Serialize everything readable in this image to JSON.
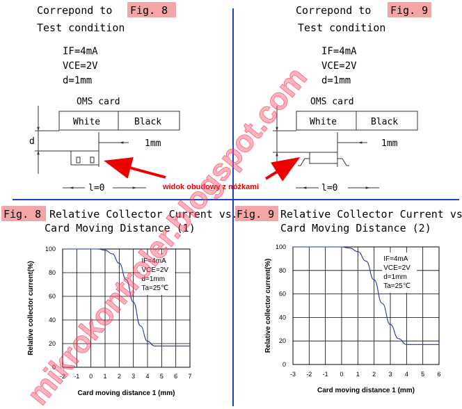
{
  "panels": {
    "left_header": {
      "prefix": "Correpond to",
      "fig": "Fig. 8"
    },
    "right_header": {
      "prefix": "Correpond to",
      "fig": "Fig. 9"
    },
    "test_condition": "Test condition",
    "cond_if": "IF=4mA",
    "cond_vce": "VCE=2V",
    "cond_d": "d=1mm",
    "oms_card": "OMS   card",
    "white": "White",
    "black": "Black",
    "d_label": "d",
    "mm_label": "1mm",
    "l_zero": "l=0",
    "annotation": "widok obudowy z nóżkami"
  },
  "figures": [
    {
      "tag": "Fig. 8",
      "title_line1": "Relative Collector Current vs.",
      "title_line2": "Card Moving Distance (1)"
    },
    {
      "tag": "Fig. 9",
      "title_line1": "Relative Collector Current vs.",
      "title_line2": "Card Moving Distance (2)"
    }
  ],
  "watermark": "mikrokontroler.blogspot.com",
  "chart_data": [
    {
      "type": "line",
      "title": "Fig. 8 Relative Collector Current vs. Card Moving Distance (1)",
      "xlabel": "Card moving distance 1 (mm)",
      "ylabel": "Relative collector current(%)",
      "xlim": [
        -2,
        7
      ],
      "ylim": [
        0,
        100
      ],
      "xticks": [
        "-2",
        "-1",
        "0",
        "1",
        "2",
        "3",
        "4",
        "5",
        "6",
        "7"
      ],
      "yticks": [
        "0",
        "20",
        "40",
        "60",
        "80",
        "100"
      ],
      "legend": [
        "IF=4mA",
        "VCE=2V",
        "d=1mm",
        "Ta=25℃"
      ],
      "series": [
        {
          "x": [
            -2,
            0,
            0.5,
            1,
            1.5,
            2,
            2.5,
            3,
            3.5,
            4,
            4.5,
            5,
            6,
            7
          ],
          "y": [
            100,
            100,
            100,
            99,
            96,
            88,
            74,
            55,
            35,
            22,
            18,
            18,
            18,
            18
          ]
        }
      ]
    },
    {
      "type": "line",
      "title": "Fig. 9 Relative Collector Current vs. Card Moving Distance (2)",
      "xlabel": "Card moving distance 1 (mm)",
      "ylabel": "Relative collector current(%)",
      "xlim": [
        -3,
        6
      ],
      "ylim": [
        0,
        100
      ],
      "xticks": [
        "-3",
        "-2",
        "-1",
        "0",
        "1",
        "2",
        "3",
        "4",
        "5",
        "6"
      ],
      "yticks": [
        "0",
        "20",
        "40",
        "60",
        "80",
        "100"
      ],
      "legend": [
        "IF=4mA",
        "VCE=2V",
        "d=1mm",
        "Ta=25℃"
      ],
      "series": [
        {
          "x": [
            -3,
            0,
            0.5,
            1,
            1.5,
            2,
            2.5,
            3,
            3.5,
            4,
            4.5,
            5,
            6
          ],
          "y": [
            100,
            100,
            99,
            96,
            88,
            72,
            52,
            34,
            22,
            17,
            17,
            17,
            17
          ]
        }
      ]
    }
  ]
}
